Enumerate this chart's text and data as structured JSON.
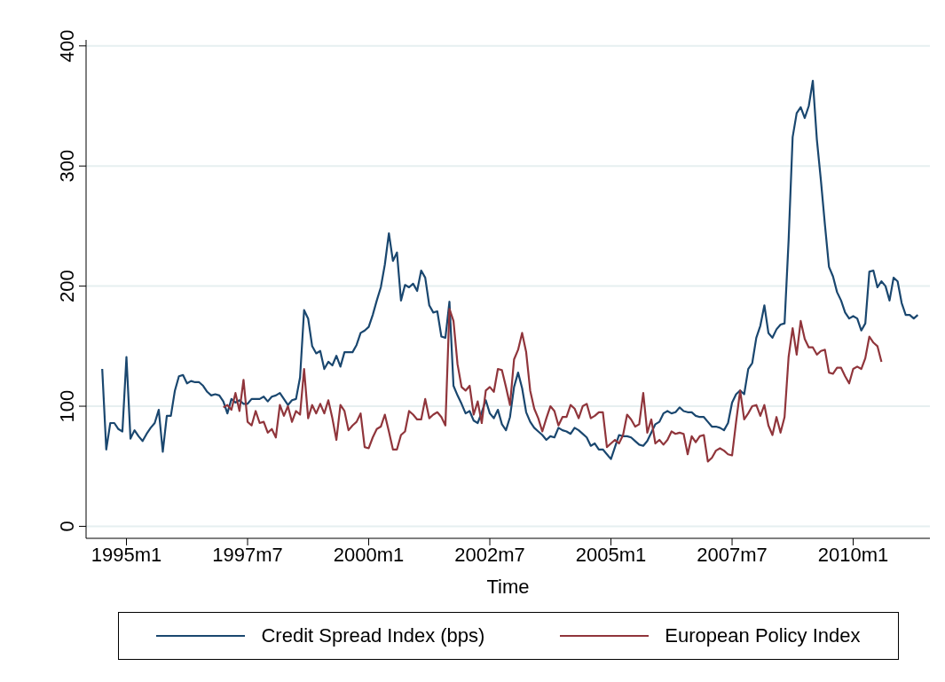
{
  "chart_data": {
    "type": "line",
    "xlabel": "Time",
    "x": [
      "1994-07",
      "1994-08",
      "1994-09",
      "1994-10",
      "1994-11",
      "1994-12",
      "1995-01",
      "1995-02",
      "1995-03",
      "1995-04",
      "1995-05",
      "1995-06",
      "1995-07",
      "1995-08",
      "1995-09",
      "1995-10",
      "1995-11",
      "1995-12",
      "1996-01",
      "1996-02",
      "1996-03",
      "1996-04",
      "1996-05",
      "1996-06",
      "1996-07",
      "1996-08",
      "1996-09",
      "1996-10",
      "1996-11",
      "1996-12",
      "1997-01",
      "1997-02",
      "1997-03",
      "1997-04",
      "1997-05",
      "1997-06",
      "1997-07",
      "1997-08",
      "1997-09",
      "1997-10",
      "1997-11",
      "1997-12",
      "1998-01",
      "1998-02",
      "1998-03",
      "1998-04",
      "1998-05",
      "1998-06",
      "1998-07",
      "1998-08",
      "1998-09",
      "1998-10",
      "1998-11",
      "1998-12",
      "1999-01",
      "1999-02",
      "1999-03",
      "1999-04",
      "1999-05",
      "1999-06",
      "1999-07",
      "1999-08",
      "1999-09",
      "1999-10",
      "1999-11",
      "1999-12",
      "2000-01",
      "2000-02",
      "2000-03",
      "2000-04",
      "2000-05",
      "2000-06",
      "2000-07",
      "2000-08",
      "2000-09",
      "2000-10",
      "2000-11",
      "2000-12",
      "2001-01",
      "2001-02",
      "2001-03",
      "2001-04",
      "2001-05",
      "2001-06",
      "2001-07",
      "2001-08",
      "2001-09",
      "2001-10",
      "2001-11",
      "2001-12",
      "2002-01",
      "2002-02",
      "2002-03",
      "2002-04",
      "2002-05",
      "2002-06",
      "2002-07",
      "2002-08",
      "2002-09",
      "2002-10",
      "2002-11",
      "2002-12",
      "2003-01",
      "2003-02",
      "2003-03",
      "2003-04",
      "2003-05",
      "2003-06",
      "2003-07",
      "2003-08",
      "2003-09",
      "2003-10",
      "2003-11",
      "2003-12",
      "2004-01",
      "2004-02",
      "2004-03",
      "2004-04",
      "2004-05",
      "2004-06",
      "2004-07",
      "2004-08",
      "2004-09",
      "2004-10",
      "2004-11",
      "2004-12",
      "2005-01",
      "2005-02",
      "2005-03",
      "2005-04",
      "2005-05",
      "2005-06",
      "2005-07",
      "2005-08",
      "2005-09",
      "2005-10",
      "2005-11",
      "2005-12",
      "2006-01",
      "2006-02",
      "2006-03",
      "2006-04",
      "2006-05",
      "2006-06",
      "2006-07",
      "2006-08",
      "2006-09",
      "2006-10",
      "2006-11",
      "2006-12",
      "2007-01",
      "2007-02",
      "2007-03",
      "2007-04",
      "2007-05",
      "2007-06",
      "2007-07",
      "2007-08",
      "2007-09",
      "2007-10",
      "2007-11",
      "2007-12",
      "2008-01",
      "2008-02",
      "2008-03",
      "2008-04",
      "2008-05",
      "2008-06",
      "2008-07",
      "2008-08",
      "2008-09",
      "2008-10",
      "2008-11",
      "2008-12",
      "2009-01",
      "2009-02",
      "2009-03",
      "2009-04",
      "2009-05",
      "2009-06",
      "2009-07",
      "2009-08",
      "2009-09",
      "2009-10",
      "2009-11",
      "2009-12",
      "2010-01",
      "2010-02",
      "2010-03",
      "2010-04",
      "2010-05",
      "2010-06",
      "2010-07",
      "2010-08",
      "2010-09",
      "2010-10",
      "2010-11",
      "2010-12",
      "2011-01",
      "2011-02",
      "2011-03",
      "2011-04",
      "2011-05"
    ],
    "series": [
      {
        "name": "Credit Spread Index (bps)",
        "color": "#1a476f",
        "values": [
          131,
          64,
          86,
          86,
          81,
          79,
          141,
          73,
          80,
          75,
          71,
          77,
          82,
          86,
          97,
          62,
          92,
          92,
          113,
          125,
          126,
          119,
          121,
          120,
          120,
          117,
          112,
          109,
          110,
          109,
          104,
          94,
          106,
          103,
          105,
          102,
          102,
          106,
          106,
          106,
          108,
          104,
          108,
          109,
          111,
          106,
          101,
          105,
          106,
          124,
          180,
          173,
          150,
          144,
          146,
          131,
          137,
          134,
          142,
          133,
          145,
          145,
          145,
          151,
          161,
          163,
          166,
          176,
          188,
          199,
          218,
          244,
          221,
          228,
          188,
          201,
          199,
          202,
          196,
          213,
          207,
          184,
          178,
          179,
          158,
          157,
          187,
          117,
          109,
          102,
          94,
          96,
          88,
          86,
          95,
          105,
          94,
          90,
          97,
          85,
          80,
          91,
          116,
          128,
          115,
          95,
          87,
          82,
          79,
          76,
          72,
          75,
          74,
          82,
          80,
          79,
          77,
          82,
          80,
          77,
          74,
          67,
          69,
          64,
          64,
          60,
          56,
          66,
          76,
          75,
          75,
          74,
          71,
          68,
          67,
          71,
          78,
          85,
          87,
          94,
          96,
          94,
          95,
          99,
          96,
          95,
          95,
          92,
          91,
          91,
          87,
          83,
          83,
          82,
          80,
          86,
          103,
          110,
          113,
          110,
          131,
          136,
          157,
          167,
          184,
          161,
          157,
          164,
          168,
          169,
          238,
          324,
          344,
          349,
          340,
          350,
          371,
          322,
          288,
          251,
          216,
          208,
          195,
          188,
          178,
          173,
          175,
          173,
          163,
          169,
          212,
          213,
          199,
          204,
          200,
          188,
          207,
          204,
          186,
          176,
          176,
          173,
          176
        ]
      },
      {
        "name": "European Policy Index",
        "color": "#90353b",
        "values": [
          null,
          null,
          null,
          null,
          null,
          null,
          null,
          null,
          null,
          null,
          null,
          null,
          null,
          null,
          null,
          null,
          null,
          null,
          null,
          null,
          null,
          null,
          null,
          null,
          null,
          null,
          null,
          null,
          null,
          null,
          99,
          101,
          97,
          111,
          96,
          122,
          87,
          84,
          96,
          86,
          87,
          78,
          81,
          74,
          101,
          92,
          100,
          87,
          96,
          93,
          131,
          90,
          101,
          94,
          102,
          94,
          105,
          90,
          72,
          101,
          96,
          80,
          84,
          87,
          94,
          66,
          65,
          74,
          81,
          83,
          93,
          79,
          64,
          64,
          76,
          79,
          96,
          93,
          89,
          89,
          106,
          90,
          93,
          95,
          91,
          84,
          181,
          171,
          135,
          116,
          113,
          117,
          93,
          104,
          86,
          113,
          116,
          112,
          131,
          130,
          116,
          101,
          139,
          147,
          161,
          145,
          113,
          98,
          90,
          79,
          90,
          100,
          96,
          84,
          91,
          91,
          101,
          98,
          90,
          100,
          102,
          90,
          92,
          95,
          95,
          66,
          69,
          72,
          69,
          76,
          93,
          89,
          83,
          85,
          111,
          78,
          89,
          69,
          72,
          68,
          72,
          79,
          77,
          78,
          77,
          60,
          75,
          70,
          75,
          76,
          54,
          57,
          63,
          65,
          63,
          60,
          59,
          87,
          113,
          89,
          94,
          100,
          101,
          92,
          101,
          84,
          76,
          91,
          78,
          91,
          141,
          165,
          143,
          171,
          156,
          149,
          149,
          143,
          146,
          147,
          128,
          127,
          132,
          132,
          125,
          119,
          131,
          133,
          131,
          140,
          158,
          153,
          150,
          137,
          null,
          null,
          null,
          null,
          null,
          null,
          null,
          null,
          null
        ]
      }
    ],
    "xlim": [
      "1994-03",
      "2011-08"
    ],
    "xticks": [
      {
        "value": "1995-01",
        "label": "1995m1"
      },
      {
        "value": "1997-07",
        "label": "1997m7"
      },
      {
        "value": "2000-01",
        "label": "2000m1"
      },
      {
        "value": "2002-07",
        "label": "2002m7"
      },
      {
        "value": "2005-01",
        "label": "2005m1"
      },
      {
        "value": "2007-07",
        "label": "2007m7"
      },
      {
        "value": "2010-01",
        "label": "2010m1"
      }
    ],
    "ylim": [
      -10,
      405
    ],
    "yticks": [
      0,
      100,
      200,
      300,
      400
    ],
    "grid": "y",
    "legend": "bottom",
    "line_style": "solid",
    "marker": "none"
  }
}
